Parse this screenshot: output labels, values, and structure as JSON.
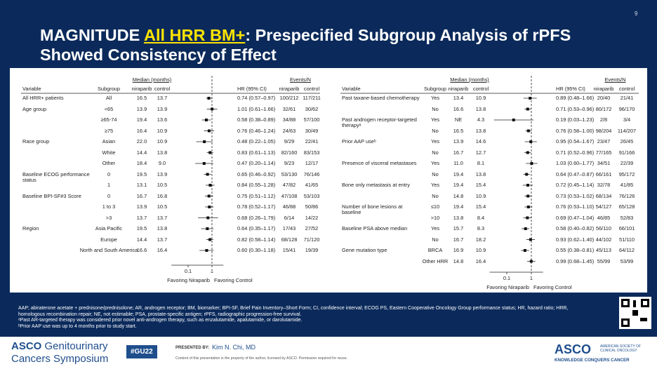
{
  "page_number": "9",
  "title": {
    "before": "MAGNITUDE ",
    "highlight": "All HRR BM+",
    "after": ": Prespecified Subgroup Analysis of rPFS Showed Consistency of Effect"
  },
  "panels": [
    {
      "headers": {
        "median": "Median (months)",
        "events": "Events/N",
        "variable": "Variable",
        "subgroup": "Subgroup",
        "median_nir": "niraparib",
        "median_ctrl": "control",
        "hr": "HR (95% CI)",
        "events_nir": "niraparib",
        "events_ctrl": "control"
      },
      "xlim": [
        0.02,
        3
      ],
      "xticks": [
        0.1,
        1
      ],
      "favor_left": "Favoring Niraparib",
      "favor_right": "Favoring Control",
      "rows": [
        {
          "variable": "All HRR+ patients",
          "subgroup": "All",
          "median_nir": "16.5",
          "median_ctrl": "13.7",
          "hr": 0.74,
          "ci": [
            0.57,
            0.97
          ],
          "hr_label": "0.74 (0.57–0.97)",
          "events_nir": "100/212",
          "events_ctrl": "117/211"
        },
        {
          "variable": "Age group",
          "subgroup": "<65",
          "median_nir": "13.9",
          "median_ctrl": "13.9",
          "hr": 1.01,
          "ci": [
            0.61,
            1.66
          ],
          "hr_label": "1.01 (0.61–1.66)",
          "events_nir": "32/61",
          "events_ctrl": "30/62"
        },
        {
          "subgroup": "≥65-74",
          "median_nir": "19.4",
          "median_ctrl": "13.6",
          "hr": 0.58,
          "ci": [
            0.38,
            0.89
          ],
          "hr_label": "0.58 (0.38–0.89)",
          "events_nir": "34/88",
          "events_ctrl": "57/100"
        },
        {
          "subgroup": "≥75",
          "median_nir": "16.4",
          "median_ctrl": "10.9",
          "hr": 0.76,
          "ci": [
            0.46,
            1.24
          ],
          "hr_label": "0.76 (0.46–1.24)",
          "events_nir": "24/63",
          "events_ctrl": "30/49"
        },
        {
          "variable": "Race group",
          "subgroup": "Asian",
          "median_nir": "22.0",
          "median_ctrl": "10.9",
          "hr": 0.48,
          "ci": [
            0.22,
            1.05
          ],
          "hr_label": "0.48 (0.22–1.05)",
          "events_nir": "9/29",
          "events_ctrl": "22/41"
        },
        {
          "subgroup": "White",
          "median_nir": "14.4",
          "median_ctrl": "13.8",
          "hr": 0.83,
          "ci": [
            0.61,
            1.13
          ],
          "hr_label": "0.83 (0.61–1.13)",
          "events_nir": "82/160",
          "events_ctrl": "83/153"
        },
        {
          "subgroup": "Other",
          "median_nir": "18.4",
          "median_ctrl": "9.0",
          "hr": 0.47,
          "ci": [
            0.2,
            1.14
          ],
          "hr_label": "0.47 (0.20–1.14)",
          "events_nir": "9/23",
          "events_ctrl": "12/17"
        },
        {
          "variable": "Baseline ECOG performance status",
          "subgroup": "0",
          "median_nir": "19.5",
          "median_ctrl": "13.9",
          "hr": 0.65,
          "ci": [
            0.46,
            0.92
          ],
          "hr_label": "0.65 (0.46–0.92)",
          "events_nir": "53/130",
          "events_ctrl": "76/146"
        },
        {
          "subgroup": "1",
          "median_nir": "13.1",
          "median_ctrl": "10.5",
          "hr": 0.84,
          "ci": [
            0.55,
            1.28
          ],
          "hr_label": "0.84 (0.55–1.28)",
          "events_nir": "47/82",
          "events_ctrl": "41/65"
        },
        {
          "variable": "Baseline BPI-SF#3 Score",
          "subgroup": "0",
          "median_nir": "16.7",
          "median_ctrl": "16.8",
          "hr": 0.75,
          "ci": [
            0.51,
            1.12
          ],
          "hr_label": "0.75 (0.51–1.12)",
          "events_nir": "47/108",
          "events_ctrl": "53/103"
        },
        {
          "subgroup": "1 to 3",
          "median_nir": "13.9",
          "median_ctrl": "10.5",
          "hr": 0.78,
          "ci": [
            0.52,
            1.17
          ],
          "hr_label": "0.78 (0.52–1.17)",
          "events_nir": "46/88",
          "events_ctrl": "50/86"
        },
        {
          "subgroup": ">3",
          "median_nir": "13.7",
          "median_ctrl": "13.7",
          "hr": 0.68,
          "ci": [
            0.26,
            1.79
          ],
          "hr_label": "0.68 (0.26–1.79)",
          "events_nir": "6/14",
          "events_ctrl": "14/22"
        },
        {
          "variable": "Region",
          "subgroup": "Asia Pacific",
          "median_nir": "19.5",
          "median_ctrl": "13.8",
          "hr": 0.64,
          "ci": [
            0.35,
            1.17
          ],
          "hr_label": "0.64 (0.35–1.17)",
          "events_nir": "17/43",
          "events_ctrl": "27/52"
        },
        {
          "subgroup": "Europe",
          "median_nir": "14.4",
          "median_ctrl": "13.7",
          "hr": 0.82,
          "ci": [
            0.58,
            1.14
          ],
          "hr_label": "0.82 (0.58–1.14)",
          "events_nir": "68/128",
          "events_ctrl": "71/120"
        },
        {
          "subgroup": "North and South America",
          "median_nir": "16.6",
          "median_ctrl": "16.4",
          "hr": 0.6,
          "ci": [
            0.3,
            1.18
          ],
          "hr_label": "0.60 (0.30–1.18)",
          "events_nir": "15/41",
          "events_ctrl": "19/39"
        }
      ]
    },
    {
      "headers": {
        "median": "Median (months)",
        "events": "Events/N",
        "variable": "Variable",
        "subgroup": "Subgroup",
        "median_nir": "niraparib",
        "median_ctrl": "control",
        "hr": "HR (95% CI)",
        "events_nir": "niraparib",
        "events_ctrl": "control"
      },
      "xlim": [
        0.02,
        3
      ],
      "xticks": [
        0.1,
        1
      ],
      "favor_left": "Favoring Niraparib",
      "favor_right": "Favoring Control",
      "rows": [
        {
          "variable": "Past taxane-based chemotherapy",
          "subgroup": "Yes",
          "median_nir": "13.4",
          "median_ctrl": "10.9",
          "hr": 0.89,
          "ci": [
            0.48,
            1.66
          ],
          "hr_label": "0.89 (0.48–1.66)",
          "events_nir": "20/40",
          "events_ctrl": "21/41"
        },
        {
          "subgroup": "No",
          "median_nir": "16.6",
          "median_ctrl": "13.8",
          "hr": 0.71,
          "ci": [
            0.53,
            0.96
          ],
          "hr_label": "0.71 (0.53–0.96)",
          "events_nir": "80/172",
          "events_ctrl": "96/170"
        },
        {
          "variable": "Past androgen receptor-targeted therapyᵃ",
          "subgroup": "Yes",
          "median_nir": "NE",
          "median_ctrl": "4.3",
          "hr": 0.19,
          "ci": [
            0.03,
            1.23
          ],
          "hr_label": "0.19 (0.03–1.23)",
          "events_nir": "2/8",
          "events_ctrl": "3/4"
        },
        {
          "subgroup": "No",
          "median_nir": "16.5",
          "median_ctrl": "13.8",
          "hr": 0.76,
          "ci": [
            0.58,
            1.0
          ],
          "hr_label": "0.76 (0.58–1.00)",
          "events_nir": "98/204",
          "events_ctrl": "114/207"
        },
        {
          "variable": "Prior AAP useᵇ",
          "subgroup": "Yes",
          "median_nir": "13.9",
          "median_ctrl": "14.6",
          "hr": 0.95,
          "ci": [
            0.54,
            1.67
          ],
          "hr_label": "0.95 (0.54–1.67)",
          "events_nir": "23/47",
          "events_ctrl": "26/45"
        },
        {
          "subgroup": "No",
          "median_nir": "16.7",
          "median_ctrl": "12.7",
          "hr": 0.71,
          "ci": [
            0.52,
            0.96
          ],
          "hr_label": "0.71 (0.52–0.96)",
          "events_nir": "77/165",
          "events_ctrl": "91/166"
        },
        {
          "variable": "Presence of visceral metastases",
          "subgroup": "Yes",
          "median_nir": "11.0",
          "median_ctrl": "8.1",
          "hr": 1.03,
          "ci": [
            0.6,
            1.77
          ],
          "hr_label": "1.03 (0.60–1.77)",
          "events_nir": "34/51",
          "events_ctrl": "22/39"
        },
        {
          "subgroup": "No",
          "median_nir": "19.4",
          "median_ctrl": "13.8",
          "hr": 0.64,
          "ci": [
            0.47,
            0.87
          ],
          "hr_label": "0.64 (0.47–0.87)",
          "events_nir": "66/161",
          "events_ctrl": "95/172"
        },
        {
          "variable": "Bone only metastasis at entry",
          "subgroup": "Yes",
          "median_nir": "19.4",
          "median_ctrl": "15.4",
          "hr": 0.72,
          "ci": [
            0.45,
            1.14
          ],
          "hr_label": "0.72 (0.45–1.14)",
          "events_nir": "32/78",
          "events_ctrl": "41/85"
        },
        {
          "subgroup": "No",
          "median_nir": "14.8",
          "median_ctrl": "10.9",
          "hr": 0.73,
          "ci": [
            0.53,
            1.02
          ],
          "hr_label": "0.73 (0.53–1.02)",
          "events_nir": "68/134",
          "events_ctrl": "76/126"
        },
        {
          "variable": "Number of bone lesions at baseline",
          "subgroup": "≤10",
          "median_nir": "19.4",
          "median_ctrl": "15.4",
          "hr": 0.76,
          "ci": [
            0.53,
            1.1
          ],
          "hr_label": "0.76 (0.53–1.10)",
          "events_nir": "54/127",
          "events_ctrl": "65/128"
        },
        {
          "subgroup": ">10",
          "median_nir": "13.8",
          "median_ctrl": "8.4",
          "hr": 0.69,
          "ci": [
            0.47,
            1.04
          ],
          "hr_label": "0.69 (0.47–1.04)",
          "events_nir": "46/85",
          "events_ctrl": "52/83"
        },
        {
          "variable": "Baseline PSA above median",
          "subgroup": "Yes",
          "median_nir": "15.7",
          "median_ctrl": "8.3",
          "hr": 0.58,
          "ci": [
            0.4,
            0.82
          ],
          "hr_label": "0.58 (0.40–0.82)",
          "events_nir": "56/110",
          "events_ctrl": "66/101"
        },
        {
          "subgroup": "No",
          "median_nir": "16.7",
          "median_ctrl": "18.2",
          "hr": 0.93,
          "ci": [
            0.62,
            1.4
          ],
          "hr_label": "0.93 (0.62–1.40)",
          "events_nir": "44/102",
          "events_ctrl": "51/110"
        },
        {
          "variable": "Gene mutation type",
          "subgroup": "BRCA",
          "median_nir": "16.9",
          "median_ctrl": "10.9",
          "hr": 0.55,
          "ci": [
            0.38,
            0.81
          ],
          "hr_label": "0.55 (0.38–0.81)",
          "events_nir": "45/113",
          "events_ctrl": "64/112"
        },
        {
          "subgroup": "Other HRR",
          "median_nir": "14.8",
          "median_ctrl": "16.4",
          "hr": 0.99,
          "ci": [
            0.68,
            1.45
          ],
          "hr_label": "0.99 (0.68–1.45)",
          "events_nir": "55/99",
          "events_ctrl": "53/99"
        }
      ]
    }
  ],
  "footnotes": [
    "AAP; abiraterone acetate + prednisone/prednisolone; AR, androgen receptor; BM, biomarker; BPI-SF, Brief Pain Inventory–Short Form; CI, confidence interval; ECOG PS, Eastern Cooperative Oncology Group performance status; HR, hazard ratio; HRR, homologous recombination repair; NE, not estimable; PSA, prostate-specific antigen; rPFS, radiographic progression-free survival.",
    "ᵃPast AR-targeted therapy was considered prior novel anti-androgen therapy, such as enzalutamide, apalutamide, or darolutamide.",
    "ᵇPrior AAP use was up to 4 months prior to study start."
  ],
  "footer": {
    "meeting_brand": "ASCO",
    "meeting_line1": "Genitourinary",
    "meeting_line2": "Cancers Symposium",
    "hashtag": "#GU22",
    "presented_by": "PRESENTED BY:",
    "presenter": "Kim N. Chi, MD",
    "copyright": "Content of this presentation is the property of the author, licensed by ASCO. Permission required for reuse.",
    "logo": "ASCO",
    "logo_name": "AMERICAN SOCIETY OF CLINICAL ONCOLOGY",
    "tagline": "KNOWLEDGE CONQUERS CANCER"
  }
}
